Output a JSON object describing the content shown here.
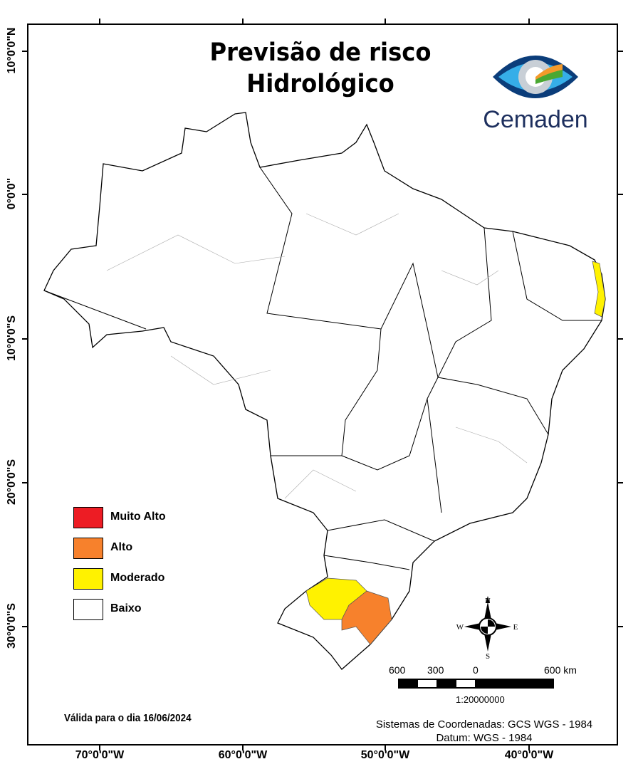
{
  "title_line1": "Previsão de risco",
  "title_line2": "Hidrológico",
  "logo_text": "Cemaden",
  "axes": {
    "longitude_labels": [
      "70°0'0\"W",
      "60°0'0\"W",
      "50°0'0\"W",
      "40°0'0\"W"
    ],
    "latitude_labels": [
      "10°0'0\"N",
      "0°0'0\"",
      "10°0'0\"S",
      "20°0'0\"S",
      "30°0'0\"S"
    ]
  },
  "legend": [
    {
      "label": "Muito Alto",
      "color": "#ed1c24"
    },
    {
      "label": "Alto",
      "color": "#f7812c"
    },
    {
      "label": "Moderado",
      "color": "#fff200"
    },
    {
      "label": "Baixo",
      "color": "#ffffff"
    }
  ],
  "validity": "Válida para o dia 16/06/2024",
  "compass": {
    "n": "N",
    "s": "S",
    "e": "E",
    "w": "W"
  },
  "scale_bar": {
    "labels": [
      "600",
      "300",
      "0",
      "600 km"
    ],
    "ratio": "1:20000000"
  },
  "coordinate_system": "Sistemas de Coordenadas: GCS WGS - 1984",
  "datum": "Datum: WGS - 1984"
}
